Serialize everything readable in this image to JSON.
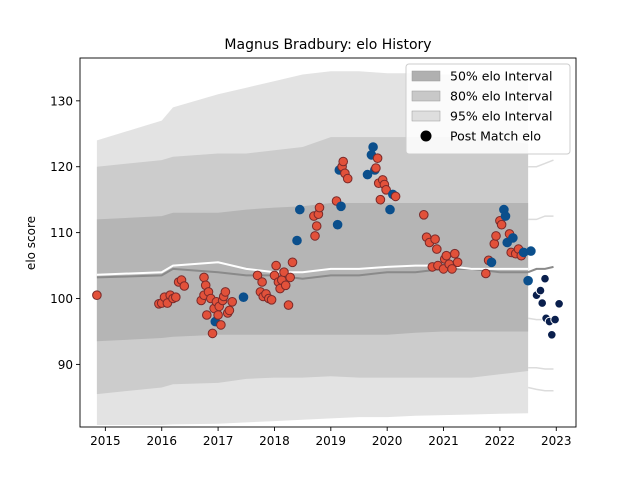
{
  "chart_data": {
    "type": "line",
    "title": "Magnus Bradbury: elo History",
    "xlabel": "",
    "ylabel": "elo score",
    "xlim": [
      2014.55,
      2023.35
    ],
    "ylim": [
      80.5,
      136.5
    ],
    "x_ticks": [
      2015,
      2016,
      2017,
      2018,
      2019,
      2020,
      2021,
      2022,
      2023
    ],
    "y_ticks": [
      90,
      100,
      110,
      120,
      130
    ],
    "grid": false,
    "legend_position": "top-right",
    "legend": {
      "entries": [
        {
          "label": "50% elo Interval",
          "color": "#b0b0b0",
          "kind": "patch"
        },
        {
          "label": "80% elo Interval",
          "color": "#c8c8c8",
          "kind": "patch"
        },
        {
          "label": "95% elo Interval",
          "color": "#dedede",
          "kind": "patch"
        },
        {
          "label": "Post Match elo",
          "color": "#000000",
          "kind": "marker"
        }
      ]
    },
    "colors": {
      "band95": "#e3e3e3",
      "band80": "#cccccc",
      "band50": "#b5b5b5",
      "median_line": "#8a8a8a",
      "mean_line": "#ffffff",
      "point_fill_red": "#e2513a",
      "point_fill_blue": "#0b4f8c",
      "point_fill_navy": "#0a1f4d",
      "point_edge_dark": "#7a2a2a",
      "point_edge_light": "#ffffff"
    },
    "bands": {
      "x": [
        2014.85,
        2016.0,
        2016.2,
        2017.0,
        2017.5,
        2018.0,
        2018.5,
        2019.0,
        2019.5,
        2020.0,
        2020.5,
        2021.0,
        2021.5,
        2022.0,
        2022.5
      ],
      "lo95": [
        80.8,
        80.8,
        80.9,
        81.0,
        81.2,
        81.4,
        81.6,
        81.8,
        82.0,
        82.0,
        82.2,
        82.3,
        82.4,
        82.5,
        82.6
      ],
      "hi95": [
        124.0,
        127.0,
        129.0,
        131.0,
        132.0,
        133.0,
        134.0,
        134.5,
        134.5,
        134.2,
        134.2,
        134.0,
        134.0,
        134.0,
        134.0
      ],
      "lo80": [
        85.5,
        86.5,
        87.0,
        87.2,
        87.8,
        88.0,
        88.0,
        88.2,
        88.0,
        88.0,
        88.0,
        88.0,
        88.0,
        88.5,
        89.0
      ],
      "hi80": [
        120.0,
        121.0,
        121.5,
        122.0,
        122.0,
        122.5,
        123.0,
        124.5,
        124.5,
        124.5,
        124.5,
        124.5,
        124.5,
        124.0,
        123.5
      ],
      "lo50": [
        93.5,
        94.0,
        94.2,
        94.5,
        94.5,
        94.5,
        94.5,
        94.5,
        94.5,
        94.5,
        94.8,
        95.0,
        95.0,
        95.0,
        95.0
      ],
      "hi50": [
        112.0,
        112.5,
        113.0,
        113.0,
        113.5,
        113.8,
        114.0,
        114.5,
        114.5,
        114.5,
        114.5,
        114.5,
        114.5,
        114.5,
        114.5
      ],
      "median": [
        103.2,
        103.5,
        104.5,
        104.0,
        103.5,
        103.5,
        103.0,
        103.5,
        103.5,
        104.0,
        104.0,
        104.5,
        104.5,
        104.0,
        104.0
      ],
      "mean": [
        103.6,
        104.0,
        105.0,
        105.5,
        104.5,
        104.0,
        104.0,
        104.5,
        104.5,
        104.8,
        105.0,
        105.0,
        104.5,
        104.5,
        104.5
      ]
    },
    "tail_lines": {
      "x": [
        2022.5,
        2022.65,
        2022.8,
        2022.95
      ],
      "hi95": [
        130.0,
        130.5,
        130.5,
        131.0
      ],
      "hi80": [
        120.0,
        120.0,
        120.5,
        121.0
      ],
      "hi50": [
        112.0,
        112.0,
        112.5,
        112.5
      ],
      "median": [
        104.0,
        104.5,
        104.5,
        104.8
      ],
      "lo50": [
        97.0,
        96.8,
        96.8,
        96.8
      ],
      "lo80": [
        89.5,
        89.5,
        89.3,
        89.3
      ],
      "lo95": [
        86.5,
        86.2,
        86.0,
        86.0
      ]
    },
    "series": [
      {
        "name": "Post Match elo",
        "points": [
          {
            "x": 2014.85,
            "y": 100.5,
            "c": "red"
          },
          {
            "x": 2015.95,
            "y": 99.2,
            "c": "red"
          },
          {
            "x": 2016.0,
            "y": 99.3,
            "c": "red"
          },
          {
            "x": 2016.05,
            "y": 100.2,
            "c": "red"
          },
          {
            "x": 2016.1,
            "y": 99.3,
            "c": "red"
          },
          {
            "x": 2016.15,
            "y": 100.5,
            "c": "red"
          },
          {
            "x": 2016.2,
            "y": 100.0,
            "c": "red"
          },
          {
            "x": 2016.25,
            "y": 100.2,
            "c": "red"
          },
          {
            "x": 2016.3,
            "y": 102.5,
            "c": "red"
          },
          {
            "x": 2016.35,
            "y": 102.8,
            "c": "red"
          },
          {
            "x": 2016.4,
            "y": 101.9,
            "c": "red"
          },
          {
            "x": 2016.7,
            "y": 99.7,
            "c": "red"
          },
          {
            "x": 2016.75,
            "y": 100.5,
            "c": "red"
          },
          {
            "x": 2016.75,
            "y": 103.2,
            "c": "red"
          },
          {
            "x": 2016.78,
            "y": 102.0,
            "c": "red"
          },
          {
            "x": 2016.8,
            "y": 97.5,
            "c": "red"
          },
          {
            "x": 2016.83,
            "y": 101.0,
            "c": "red"
          },
          {
            "x": 2016.87,
            "y": 100.0,
            "c": "red"
          },
          {
            "x": 2016.9,
            "y": 94.7,
            "c": "red"
          },
          {
            "x": 2016.93,
            "y": 98.5,
            "c": "red"
          },
          {
            "x": 2016.95,
            "y": 96.5,
            "c": "blue"
          },
          {
            "x": 2016.97,
            "y": 99.5,
            "c": "red"
          },
          {
            "x": 2017.0,
            "y": 97.5,
            "c": "red"
          },
          {
            "x": 2017.02,
            "y": 98.8,
            "c": "red"
          },
          {
            "x": 2017.05,
            "y": 96.0,
            "c": "red"
          },
          {
            "x": 2017.08,
            "y": 99.7,
            "c": "red"
          },
          {
            "x": 2017.1,
            "y": 100.3,
            "c": "red"
          },
          {
            "x": 2017.13,
            "y": 101.0,
            "c": "red"
          },
          {
            "x": 2017.17,
            "y": 97.8,
            "c": "red"
          },
          {
            "x": 2017.2,
            "y": 98.2,
            "c": "red"
          },
          {
            "x": 2017.25,
            "y": 99.5,
            "c": "red"
          },
          {
            "x": 2017.45,
            "y": 100.2,
            "c": "blue"
          },
          {
            "x": 2017.7,
            "y": 103.5,
            "c": "red"
          },
          {
            "x": 2017.75,
            "y": 101.0,
            "c": "red"
          },
          {
            "x": 2017.78,
            "y": 102.5,
            "c": "red"
          },
          {
            "x": 2017.8,
            "y": 100.3,
            "c": "red"
          },
          {
            "x": 2017.85,
            "y": 100.7,
            "c": "red"
          },
          {
            "x": 2017.9,
            "y": 100.0,
            "c": "red"
          },
          {
            "x": 2017.95,
            "y": 99.8,
            "c": "red"
          },
          {
            "x": 2018.0,
            "y": 103.5,
            "c": "red"
          },
          {
            "x": 2018.03,
            "y": 105.0,
            "c": "red"
          },
          {
            "x": 2018.07,
            "y": 102.5,
            "c": "red"
          },
          {
            "x": 2018.1,
            "y": 101.5,
            "c": "red"
          },
          {
            "x": 2018.13,
            "y": 102.8,
            "c": "red"
          },
          {
            "x": 2018.17,
            "y": 104.0,
            "c": "red"
          },
          {
            "x": 2018.2,
            "y": 102.0,
            "c": "red"
          },
          {
            "x": 2018.25,
            "y": 99.0,
            "c": "red"
          },
          {
            "x": 2018.28,
            "y": 103.2,
            "c": "red"
          },
          {
            "x": 2018.32,
            "y": 105.5,
            "c": "red"
          },
          {
            "x": 2018.4,
            "y": 108.8,
            "c": "blue"
          },
          {
            "x": 2018.45,
            "y": 113.5,
            "c": "blue"
          },
          {
            "x": 2018.7,
            "y": 112.5,
            "c": "red"
          },
          {
            "x": 2018.72,
            "y": 109.5,
            "c": "red"
          },
          {
            "x": 2018.75,
            "y": 111.0,
            "c": "red"
          },
          {
            "x": 2018.78,
            "y": 112.8,
            "c": "red"
          },
          {
            "x": 2018.8,
            "y": 113.8,
            "c": "red"
          },
          {
            "x": 2019.1,
            "y": 114.8,
            "c": "red"
          },
          {
            "x": 2019.12,
            "y": 111.2,
            "c": "blue"
          },
          {
            "x": 2019.15,
            "y": 119.5,
            "c": "blue"
          },
          {
            "x": 2019.18,
            "y": 114.0,
            "c": "blue"
          },
          {
            "x": 2019.2,
            "y": 120.0,
            "c": "red"
          },
          {
            "x": 2019.22,
            "y": 120.8,
            "c": "red"
          },
          {
            "x": 2019.25,
            "y": 119.0,
            "c": "red"
          },
          {
            "x": 2019.3,
            "y": 118.2,
            "c": "red"
          },
          {
            "x": 2019.65,
            "y": 118.8,
            "c": "blue"
          },
          {
            "x": 2019.72,
            "y": 121.8,
            "c": "blue"
          },
          {
            "x": 2019.75,
            "y": 123.0,
            "c": "blue"
          },
          {
            "x": 2019.78,
            "y": 119.5,
            "c": "blue"
          },
          {
            "x": 2019.8,
            "y": 119.8,
            "c": "red"
          },
          {
            "x": 2019.83,
            "y": 121.3,
            "c": "red"
          },
          {
            "x": 2019.85,
            "y": 117.5,
            "c": "red"
          },
          {
            "x": 2019.88,
            "y": 115.0,
            "c": "red"
          },
          {
            "x": 2019.92,
            "y": 118.0,
            "c": "red"
          },
          {
            "x": 2019.95,
            "y": 117.3,
            "c": "red"
          },
          {
            "x": 2019.98,
            "y": 116.5,
            "c": "red"
          },
          {
            "x": 2020.05,
            "y": 113.5,
            "c": "blue"
          },
          {
            "x": 2020.1,
            "y": 115.8,
            "c": "blue"
          },
          {
            "x": 2020.15,
            "y": 115.5,
            "c": "red"
          },
          {
            "x": 2020.65,
            "y": 112.7,
            "c": "red"
          },
          {
            "x": 2020.7,
            "y": 109.3,
            "c": "red"
          },
          {
            "x": 2020.75,
            "y": 108.5,
            "c": "red"
          },
          {
            "x": 2020.8,
            "y": 104.8,
            "c": "red"
          },
          {
            "x": 2020.85,
            "y": 109.0,
            "c": "red"
          },
          {
            "x": 2020.88,
            "y": 107.5,
            "c": "red"
          },
          {
            "x": 2020.9,
            "y": 105.0,
            "c": "red"
          },
          {
            "x": 2021.0,
            "y": 104.5,
            "c": "red"
          },
          {
            "x": 2021.02,
            "y": 106.0,
            "c": "red"
          },
          {
            "x": 2021.05,
            "y": 106.5,
            "c": "red"
          },
          {
            "x": 2021.1,
            "y": 105.2,
            "c": "red"
          },
          {
            "x": 2021.15,
            "y": 104.5,
            "c": "red"
          },
          {
            "x": 2021.2,
            "y": 106.8,
            "c": "red"
          },
          {
            "x": 2021.25,
            "y": 105.5,
            "c": "red"
          },
          {
            "x": 2021.75,
            "y": 103.8,
            "c": "red"
          },
          {
            "x": 2021.8,
            "y": 105.8,
            "c": "red"
          },
          {
            "x": 2021.85,
            "y": 105.5,
            "c": "blue"
          },
          {
            "x": 2021.9,
            "y": 108.3,
            "c": "red"
          },
          {
            "x": 2021.93,
            "y": 109.5,
            "c": "red"
          },
          {
            "x": 2022.0,
            "y": 111.8,
            "c": "red"
          },
          {
            "x": 2022.03,
            "y": 111.2,
            "c": "red"
          },
          {
            "x": 2022.07,
            "y": 113.5,
            "c": "blue"
          },
          {
            "x": 2022.1,
            "y": 112.5,
            "c": "blue"
          },
          {
            "x": 2022.13,
            "y": 108.5,
            "c": "blue"
          },
          {
            "x": 2022.17,
            "y": 109.8,
            "c": "red"
          },
          {
            "x": 2022.2,
            "y": 107.0,
            "c": "red"
          },
          {
            "x": 2022.23,
            "y": 109.2,
            "c": "blue"
          },
          {
            "x": 2022.28,
            "y": 106.8,
            "c": "red"
          },
          {
            "x": 2022.33,
            "y": 107.5,
            "c": "red"
          },
          {
            "x": 2022.38,
            "y": 106.5,
            "c": "red"
          },
          {
            "x": 2022.42,
            "y": 107.0,
            "c": "blue"
          },
          {
            "x": 2022.5,
            "y": 102.7,
            "c": "blue"
          },
          {
            "x": 2022.55,
            "y": 107.2,
            "c": "blue"
          },
          {
            "x": 2022.65,
            "y": 100.5,
            "c": "navy"
          },
          {
            "x": 2022.72,
            "y": 101.2,
            "c": "navy"
          },
          {
            "x": 2022.75,
            "y": 99.3,
            "c": "navy"
          },
          {
            "x": 2022.8,
            "y": 103.0,
            "c": "navy"
          },
          {
            "x": 2022.82,
            "y": 97.0,
            "c": "navy"
          },
          {
            "x": 2022.88,
            "y": 96.5,
            "c": "navy"
          },
          {
            "x": 2022.92,
            "y": 94.5,
            "c": "navy"
          },
          {
            "x": 2022.98,
            "y": 96.8,
            "c": "navy"
          },
          {
            "x": 2023.05,
            "y": 99.2,
            "c": "navy"
          }
        ]
      }
    ]
  }
}
